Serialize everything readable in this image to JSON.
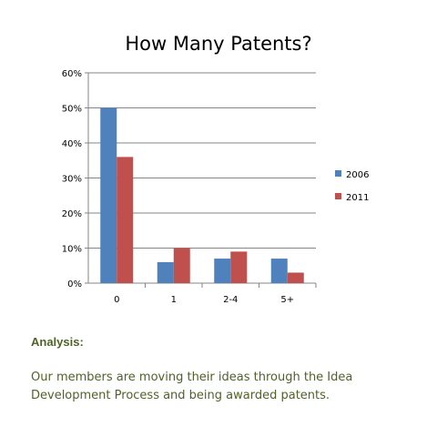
{
  "colors": {
    "series_2006": "#4f81bd",
    "series_2011": "#c0504d",
    "analysis_text": "#4f6228",
    "axis": "#868686",
    "grid": "#868686"
  },
  "chart_data": {
    "type": "bar",
    "title": "How Many Patents?",
    "categories": [
      "0",
      "1",
      "2-4",
      "5+"
    ],
    "series": [
      {
        "name": "2006",
        "values": [
          50,
          6,
          7,
          7
        ]
      },
      {
        "name": "2011",
        "values": [
          36,
          10,
          9,
          3
        ]
      }
    ],
    "ylim": [
      0,
      60
    ],
    "yticks": [
      0,
      10,
      20,
      30,
      40,
      50,
      60
    ],
    "ytick_labels": [
      "0%",
      "10%",
      "20%",
      "30%",
      "40%",
      "50%",
      "60%"
    ],
    "grid": true,
    "legend_position": "right",
    "xlabel": "",
    "ylabel": ""
  },
  "analysis": {
    "heading": "Analysis:",
    "text": "Our members are moving their ideas through the Idea Development Process and being awarded patents."
  }
}
